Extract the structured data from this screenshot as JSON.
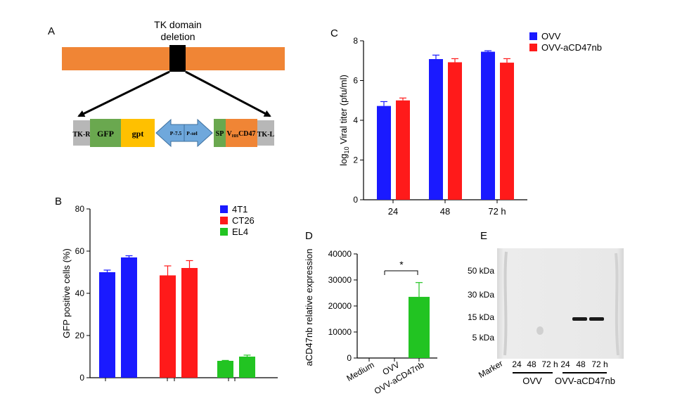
{
  "colors": {
    "blue": "#1a1aff",
    "red": "#ff1a1a",
    "green": "#22c422",
    "orange": "#f08535",
    "gfp_green": "#6aa84f",
    "gpt_yellow": "#ffc000",
    "promoter_blue": "#6fa8dc",
    "tk_gray": "#b7b7b7",
    "gel_bg": "#e6e6e6"
  },
  "panel_a": {
    "letter": "A",
    "title_line1": "TK domain",
    "title_line2": "deletion",
    "cassette": {
      "tk_r": "TK-R",
      "gfp": "GFP",
      "gpt": "gpt",
      "p75": "P-7.5",
      "psel": "P-sel",
      "sp": "SP",
      "vhh_main": "V",
      "vhh_sub": "HH",
      "vhh_end": "CD47",
      "tk_l": "TK-L"
    }
  },
  "panel_b": {
    "letter": "B",
    "legend": [
      "4T1",
      "CT26",
      "EL4"
    ]
  },
  "panel_c": {
    "letter": "C",
    "ylabel_prefix": "log",
    "ylabel_sub": "10",
    "ylabel_rest": " Viral titer (pfu/ml)"
  },
  "panel_d": {
    "letter": "D",
    "significance": "*"
  },
  "panel_e": {
    "letter": "E",
    "markers": [
      "50 kDa",
      "30 kDa",
      "15 kDa",
      "5 kDa"
    ],
    "marker_label": "Marker",
    "lanes": [
      "24",
      "48",
      "72 h",
      "24",
      "48",
      "72 h"
    ],
    "group1": "OVV",
    "group2": "OVV-aCD47nb"
  },
  "chart_data": [
    {
      "id": "B",
      "type": "bar",
      "title": "",
      "xlabel": "",
      "ylabel": "GFP positive cells (%)",
      "ylim": [
        0,
        80
      ],
      "yticks": [
        0,
        20,
        40,
        60,
        80
      ],
      "legend_position": "top-right",
      "series": [
        {
          "name": "4T1",
          "color": "blue",
          "values": [
            50,
            57
          ],
          "errors": [
            1,
            0.8
          ]
        },
        {
          "name": "CT26",
          "color": "red",
          "values": [
            48.5,
            52
          ],
          "errors": [
            4.5,
            3.5
          ]
        },
        {
          "name": "EL4",
          "color": "green",
          "values": [
            8,
            10
          ],
          "errors": [
            0.2,
            0.7
          ]
        }
      ]
    },
    {
      "id": "C",
      "type": "bar",
      "title": "",
      "xlabel": "",
      "ylabel": "log10 Viral titer (pfu/ml)",
      "categories": [
        "24",
        "48",
        "72 h"
      ],
      "ylim": [
        0,
        8
      ],
      "yticks": [
        0,
        2,
        4,
        6,
        8
      ],
      "legend_position": "top-right",
      "series": [
        {
          "name": "OVV",
          "color": "blue",
          "values": [
            4.72,
            7.08,
            7.45
          ],
          "errors": [
            0.22,
            0.2,
            0.05
          ]
        },
        {
          "name": "OVV-aCD47nb",
          "color": "red",
          "values": [
            5.0,
            6.92,
            6.9
          ],
          "errors": [
            0.12,
            0.18,
            0.2
          ]
        }
      ]
    },
    {
      "id": "D",
      "type": "bar",
      "title": "",
      "xlabel": "",
      "ylabel": "aCD47nb relative expression",
      "categories": [
        "Medium",
        "OVV",
        "OVV-aCD47nb"
      ],
      "values": [
        0,
        0,
        23500
      ],
      "errors": [
        0,
        0,
        5500
      ],
      "ylim": [
        0,
        40000
      ],
      "yticks": [
        0,
        10000,
        20000,
        30000,
        40000
      ]
    }
  ]
}
